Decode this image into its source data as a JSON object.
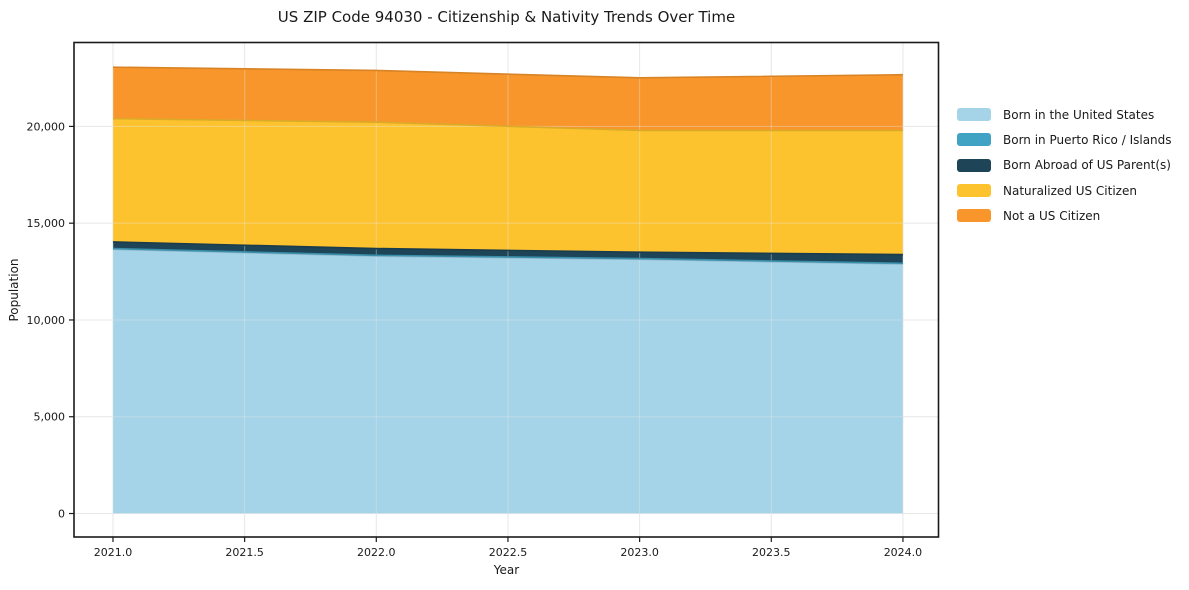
{
  "chart_data": {
    "type": "area",
    "stacked": true,
    "title": "US ZIP Code 94030 - Citizenship & Nativity Trends Over Time",
    "xlabel": "Year",
    "ylabel": "Population",
    "x": [
      2021,
      2022,
      2023,
      2024
    ],
    "series": [
      {
        "name": "Born in the United States",
        "color": "#a5d3e8",
        "values": [
          13650,
          13300,
          13130,
          12890
        ]
      },
      {
        "name": "Born in Puerto Rico / Islands",
        "color": "#40a3c4",
        "values": [
          40,
          40,
          40,
          40
        ]
      },
      {
        "name": "Born Abroad of US Parent(s)",
        "color": "#1e4557",
        "values": [
          340,
          350,
          330,
          450
        ]
      },
      {
        "name": "Naturalized US Citizen",
        "color": "#fdc32e",
        "values": [
          6370,
          6530,
          6290,
          6410
        ]
      },
      {
        "name": "Not a US Citizen",
        "color": "#f8962b",
        "values": [
          2660,
          2670,
          2720,
          2880
        ]
      }
    ],
    "x_tick_values": [
      2021.0,
      2021.5,
      2022.0,
      2022.5,
      2023.0,
      2023.5,
      2024.0
    ],
    "x_tick_labels": [
      "2021.0",
      "2021.5",
      "2022.0",
      "2022.5",
      "2023.0",
      "2023.5",
      "2024.0"
    ],
    "y_tick_values": [
      0,
      5000,
      10000,
      15000,
      20000
    ],
    "y_tick_labels": [
      "0",
      "5,000",
      "10,000",
      "15,000",
      "20,000"
    ],
    "xlim": [
      2020.852,
      2024.135
    ],
    "ylim": [
      -1213,
      24335
    ],
    "grid": true,
    "legend_position": "right",
    "axis_color": "#1a1a1a",
    "grid_color": "#e8e8e8",
    "background_color": "#ffffff"
  }
}
